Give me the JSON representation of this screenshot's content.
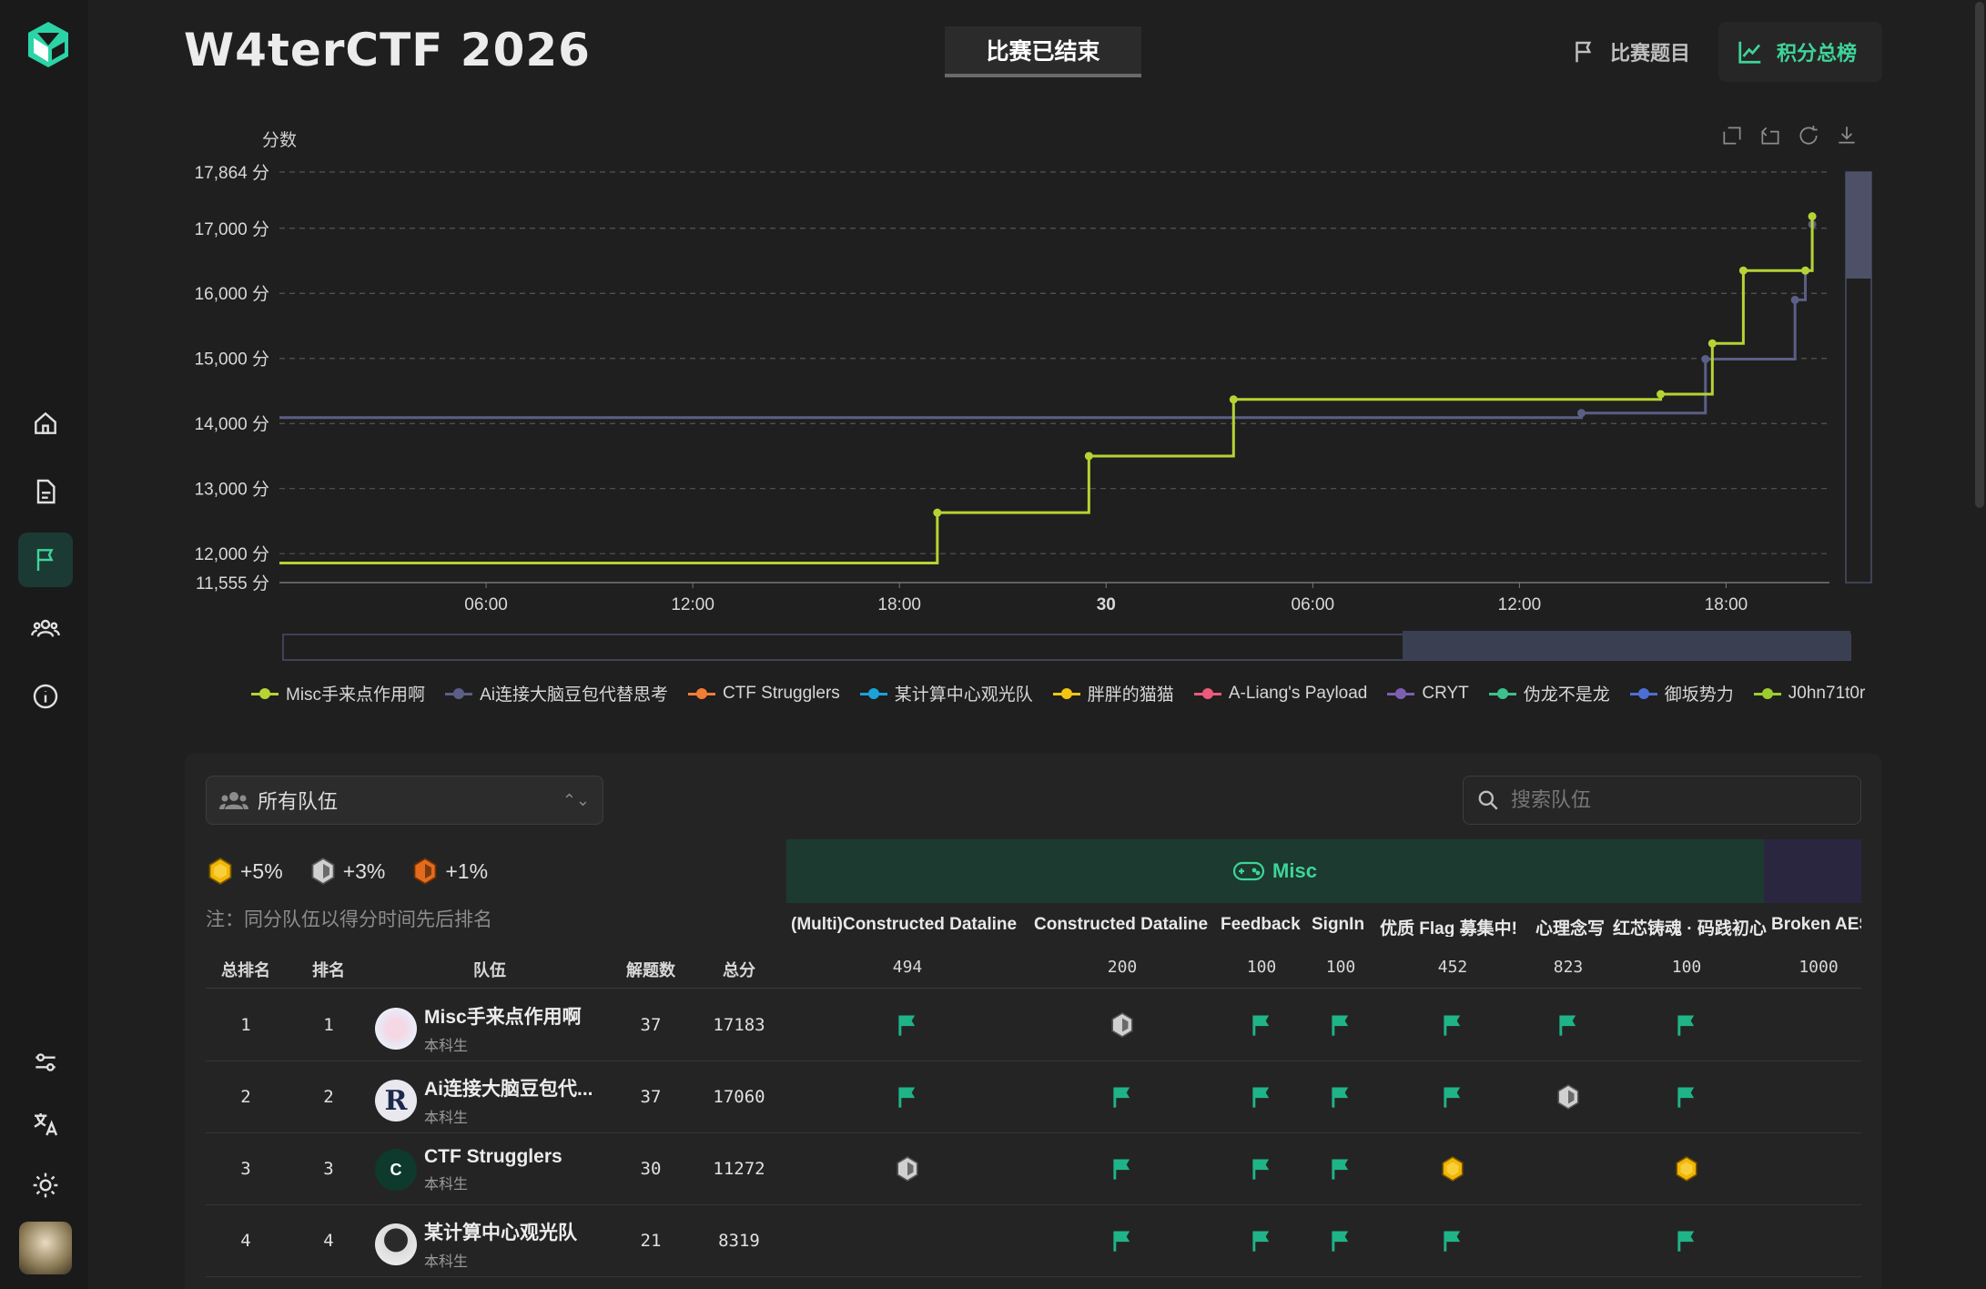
{
  "app": {
    "title": "W4terCTF 2026",
    "status": "比赛已结束"
  },
  "header": {
    "challenges_label": "比赛题目",
    "scoreboard_label": "积分总榜",
    "accent": "#3ed49a"
  },
  "sidebar": {
    "items": [
      "home-icon",
      "document-icon",
      "flag-icon",
      "team-icon",
      "info-icon"
    ],
    "bottom": [
      "settings-icon",
      "translate-icon",
      "theme-icon",
      "user-avatar"
    ]
  },
  "chart_data": {
    "type": "line",
    "ylabel": "分数",
    "ylim": [
      11555,
      17864
    ],
    "yticks": [
      "17,864 分",
      "17,000 分",
      "16,000 分",
      "15,000 分",
      "14,000 分",
      "13,000 分",
      "12,000 分",
      "11,555 分"
    ],
    "xticks": [
      "06:00",
      "12:00",
      "18:00",
      "30",
      "06:00",
      "12:00",
      "18:00"
    ],
    "x_range_hours": [
      0,
      45
    ],
    "series": [
      {
        "name": "Misc手来点作用啊",
        "color": "#b5d334",
        "x": [
          0,
          19.1,
          23.5,
          27.7,
          40.1,
          41.6,
          42.5,
          44.3,
          44.5
        ],
        "y": [
          11855,
          12630,
          13500,
          14370,
          14450,
          15230,
          16350,
          16350,
          17183
        ]
      },
      {
        "name": "Ai连接大脑豆包代替思考",
        "color": "#5b5f86",
        "x": [
          0,
          37.8,
          41.4,
          44.0,
          44.3,
          44.5
        ],
        "y": [
          14090,
          14160,
          14990,
          15900,
          16350,
          17060
        ]
      }
    ],
    "legend": [
      "Misc手来点作用啊",
      "Ai连接大脑豆包代替思考",
      "CTF Strugglers",
      "某计算中心观光队",
      "胖胖的猫猫",
      "A-Liang's Payload",
      "CRYT",
      "伪龙不是龙",
      "御坂势力",
      "J0hn71t0r"
    ],
    "legend_colors": [
      "#b5d334",
      "#5b5f86",
      "#f27d35",
      "#1aa3d9",
      "#f2c511",
      "#eb5a7a",
      "#7d5fb2",
      "#3ec08c",
      "#4b6fd4",
      "#9ccc2e"
    ]
  },
  "filters": {
    "team_select": "所有队伍",
    "search_placeholder": "搜索队伍"
  },
  "bonus": [
    {
      "label": "+5%",
      "color": "#f2b705"
    },
    {
      "label": "+3%",
      "color": "#c8c8c8"
    },
    {
      "label": "+1%",
      "color": "#e26b1d"
    }
  ],
  "note": "注：同分队伍以得分时间先后排名",
  "category": {
    "name": "Misc"
  },
  "table": {
    "headers": {
      "overall_rank": "总排名",
      "rank": "排名",
      "team": "队伍",
      "solves": "解题数",
      "score": "总分"
    },
    "challenges": [
      {
        "name": "(Multi)Constructed Dataline",
        "points": "494"
      },
      {
        "name": "Constructed Dataline",
        "points": "200"
      },
      {
        "name": "Feedback",
        "points": "100"
      },
      {
        "name": "SignIn",
        "points": "100"
      },
      {
        "name": "优质 Flag 募集中!",
        "points": "452"
      },
      {
        "name": "心理念写",
        "points": "823"
      },
      {
        "name": "红芯铸魂 · 码践初心",
        "points": "100"
      },
      {
        "name": "Broken AES",
        "points": "1000"
      }
    ],
    "rows": [
      {
        "overall": "1",
        "rank": "1",
        "name": "Misc手来点作用啊",
        "division": "本科生",
        "solves": "37",
        "score": "17183",
        "avatar": "misc",
        "marks": [
          "flag",
          "silver",
          "flag",
          "flag",
          "flag",
          "flag",
          "flag",
          ""
        ]
      },
      {
        "overall": "2",
        "rank": "2",
        "name": "Ai连接大脑豆包代...",
        "division": "本科生",
        "solves": "37",
        "score": "17060",
        "avatar": "R",
        "marks": [
          "flag",
          "flag",
          "flag",
          "flag",
          "flag",
          "silver",
          "flag",
          ""
        ]
      },
      {
        "overall": "3",
        "rank": "3",
        "name": "CTF Strugglers",
        "division": "本科生",
        "solves": "30",
        "score": "11272",
        "avatar": "C",
        "marks": [
          "silver",
          "flag",
          "flag",
          "flag",
          "gold",
          "",
          "gold",
          ""
        ]
      },
      {
        "overall": "4",
        "rank": "4",
        "name": "某计算中心观光队",
        "division": "本科生",
        "solves": "21",
        "score": "8319",
        "avatar": "face",
        "marks": [
          "",
          "flag",
          "flag",
          "flag",
          "flag",
          "",
          "flag",
          ""
        ]
      }
    ]
  }
}
